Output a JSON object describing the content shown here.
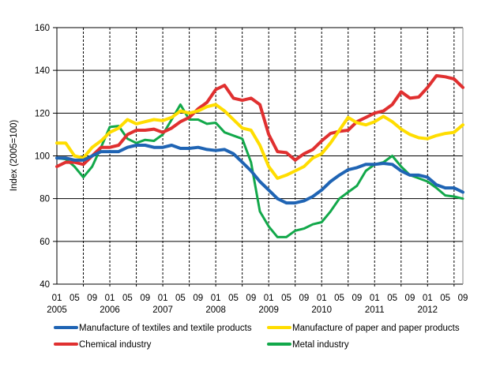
{
  "chart_data": {
    "type": "line",
    "title": "",
    "xlabel": "",
    "ylabel": "Index (2005=100)",
    "ylim": [
      40,
      160
    ],
    "yticks": [
      "40",
      "60",
      "80",
      "100",
      "120",
      "140",
      "160"
    ],
    "xticks": [
      {
        "month": "01",
        "year": "2005"
      },
      {
        "month": "05",
        "year": ""
      },
      {
        "month": "09",
        "year": ""
      },
      {
        "month": "01",
        "year": "2006"
      },
      {
        "month": "05",
        "year": ""
      },
      {
        "month": "09",
        "year": ""
      },
      {
        "month": "01",
        "year": "2007"
      },
      {
        "month": "05",
        "year": ""
      },
      {
        "month": "09",
        "year": ""
      },
      {
        "month": "01",
        "year": "2008"
      },
      {
        "month": "05",
        "year": ""
      },
      {
        "month": "09",
        "year": ""
      },
      {
        "month": "01",
        "year": "2009"
      },
      {
        "month": "05",
        "year": ""
      },
      {
        "month": "09",
        "year": ""
      },
      {
        "month": "01",
        "year": "2010"
      },
      {
        "month": "05",
        "year": ""
      },
      {
        "month": "09",
        "year": ""
      },
      {
        "month": "01",
        "year": "2011"
      },
      {
        "month": "05",
        "year": ""
      },
      {
        "month": "09",
        "year": ""
      },
      {
        "month": "01",
        "year": "2012"
      },
      {
        "month": "05",
        "year": ""
      },
      {
        "month": "09",
        "year": ""
      }
    ],
    "xrange": [
      "2005-01",
      "2012-09"
    ],
    "grid": "horizontal solid, vertical dashed",
    "legend": "bottom",
    "x": [
      "2005-01",
      "2005-03",
      "2005-05",
      "2005-07",
      "2005-09",
      "2005-11",
      "2006-01",
      "2006-03",
      "2006-05",
      "2006-07",
      "2006-09",
      "2006-11",
      "2007-01",
      "2007-03",
      "2007-05",
      "2007-07",
      "2007-09",
      "2007-11",
      "2008-01",
      "2008-03",
      "2008-05",
      "2008-07",
      "2008-09",
      "2008-11",
      "2009-01",
      "2009-03",
      "2009-05",
      "2009-07",
      "2009-09",
      "2009-11",
      "2010-01",
      "2010-03",
      "2010-05",
      "2010-07",
      "2010-09",
      "2010-11",
      "2011-01",
      "2011-03",
      "2011-05",
      "2011-07",
      "2011-09",
      "2011-11",
      "2012-01",
      "2012-03",
      "2012-05",
      "2012-07",
      "2012-09"
    ],
    "series": [
      {
        "name": "Manufacture of textiles and textile products",
        "color": "#1f64b4",
        "values": [
          99,
          99,
          98,
          98,
          100,
          102,
          102,
          102,
          104,
          105,
          105,
          104,
          104,
          105,
          103.5,
          103.5,
          104,
          103,
          102.5,
          103,
          101,
          97,
          93,
          88,
          84,
          80,
          78,
          78,
          79,
          81,
          84,
          88,
          91,
          93.5,
          94.5,
          96,
          96,
          96.5,
          96,
          93,
          91,
          91,
          90,
          86.5,
          85,
          85,
          83
        ]
      },
      {
        "name": "Manufacture of paper and paper products",
        "color": "#ffdd00",
        "values": [
          106,
          106,
          100,
          99,
          104,
          107,
          111,
          113,
          117,
          115,
          116,
          117,
          116.5,
          118,
          121,
          120,
          121,
          123,
          124,
          121,
          117,
          113,
          112,
          105,
          95,
          89.5,
          91,
          93,
          95,
          99,
          101,
          106,
          112,
          118,
          115.5,
          114.5,
          116,
          118.5,
          116,
          112.5,
          110,
          108.5,
          108,
          109.5,
          110.5,
          111,
          114.5
        ]
      },
      {
        "name": "Chemical industry",
        "color": "#e03030",
        "values": [
          95,
          97,
          97,
          96,
          100,
          104,
          104,
          105,
          110,
          112,
          112,
          112.5,
          111,
          113,
          116,
          118,
          122,
          125,
          131,
          133,
          127,
          126,
          127,
          124,
          110,
          102,
          101.5,
          98,
          101,
          103,
          107,
          110.5,
          111.5,
          112,
          116,
          118,
          120,
          121,
          124,
          130,
          127,
          127.5,
          132,
          137.5,
          137,
          136,
          132
        ]
      },
      {
        "name": "Metal industry",
        "color": "#12a84a",
        "values": [
          99,
          98.5,
          95,
          90,
          95,
          104,
          113.5,
          114,
          108,
          106,
          107.5,
          107,
          110,
          117,
          124,
          117,
          117,
          115,
          115.5,
          111,
          109.5,
          108,
          97,
          74,
          67,
          62,
          62,
          65,
          66,
          68,
          69,
          74,
          80,
          83,
          86,
          93,
          96,
          97,
          100,
          95,
          91,
          89.5,
          88,
          85,
          81.5,
          81,
          80
        ]
      }
    ]
  }
}
